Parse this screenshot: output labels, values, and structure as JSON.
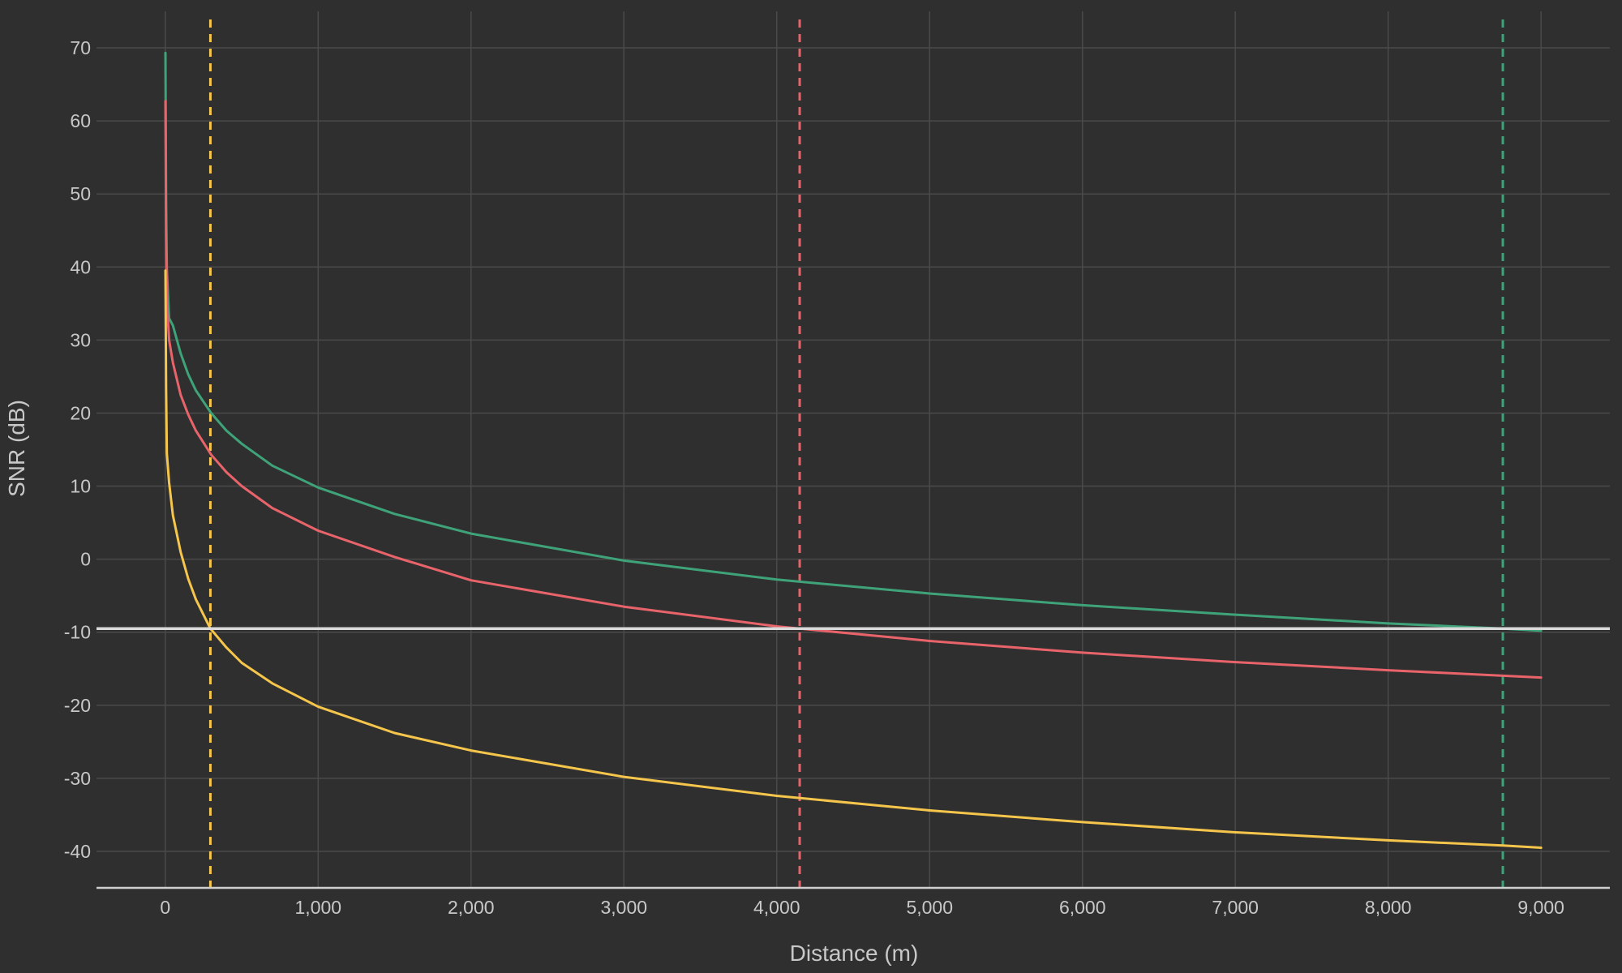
{
  "chart_data": {
    "type": "line",
    "title": "",
    "xlabel": "Distance (m)",
    "ylabel": "SNR (dB)",
    "xlim": [
      -450,
      9450
    ],
    "ylim": [
      -45,
      75
    ],
    "x_ticks": [
      0,
      1000,
      2000,
      3000,
      4000,
      5000,
      6000,
      7000,
      8000,
      9000
    ],
    "x_tick_labels": [
      "0",
      "1,000",
      "2,000",
      "3,000",
      "4,000",
      "5,000",
      "6,000",
      "7,000",
      "8,000",
      "9,000"
    ],
    "y_ticks": [
      -40,
      -30,
      -20,
      -10,
      0,
      10,
      20,
      30,
      40,
      50,
      60,
      70
    ],
    "y_tick_labels": [
      "-40",
      "-30",
      "-20",
      "-10",
      "0",
      "10",
      "20",
      "30",
      "40",
      "50",
      "60",
      "70"
    ],
    "grid": true,
    "legend": "none",
    "threshold": {
      "y": -9.5,
      "color": "#d9d9d9"
    },
    "series": [
      {
        "color": "#3fa37a",
        "x": [
          1,
          5,
          10,
          25,
          50,
          100,
          150,
          200,
          300,
          400,
          500,
          700,
          1000,
          1500,
          2000,
          3000,
          4000,
          5000,
          6000,
          7000,
          8000,
          8750,
          9000
        ],
        "y": [
          69.3,
          48.6,
          39.7,
          33.0,
          32.0,
          28.2,
          25.3,
          23.1,
          20.0,
          17.6,
          15.8,
          12.8,
          9.8,
          6.2,
          3.5,
          -0.2,
          -2.8,
          -4.7,
          -6.3,
          -7.6,
          -8.8,
          -9.5,
          -9.8
        ]
      },
      {
        "color": "#e8646a",
        "x": [
          1,
          5,
          10,
          25,
          50,
          100,
          150,
          200,
          300,
          400,
          500,
          700,
          1000,
          1500,
          2000,
          3000,
          4000,
          4150,
          5000,
          6000,
          7000,
          8000,
          9000
        ],
        "y": [
          62.7,
          44.5,
          35.5,
          30.0,
          26.9,
          22.5,
          19.8,
          17.6,
          14.3,
          11.9,
          10.0,
          7.0,
          3.9,
          0.3,
          -2.9,
          -6.5,
          -9.2,
          -9.5,
          -11.2,
          -12.8,
          -14.1,
          -15.2,
          -16.2
        ]
      },
      {
        "color": "#f5c64b",
        "x": [
          1,
          5,
          10,
          25,
          50,
          100,
          150,
          200,
          295,
          400,
          500,
          700,
          1000,
          1500,
          2000,
          3000,
          4000,
          5000,
          6000,
          7000,
          8000,
          8750,
          9000
        ],
        "y": [
          39.5,
          23.5,
          14.5,
          10.5,
          6.0,
          1.0,
          -2.7,
          -5.5,
          -9.5,
          -12.1,
          -14.2,
          -17.0,
          -20.2,
          -23.8,
          -26.2,
          -29.8,
          -32.4,
          -34.4,
          -36.0,
          -37.4,
          -38.5,
          -39.2,
          -39.5
        ]
      }
    ],
    "vlines": [
      {
        "x": 295,
        "color": "#f5c64b"
      },
      {
        "x": 4150,
        "color": "#e8646a"
      },
      {
        "x": 8750,
        "color": "#3fa37a"
      }
    ]
  }
}
